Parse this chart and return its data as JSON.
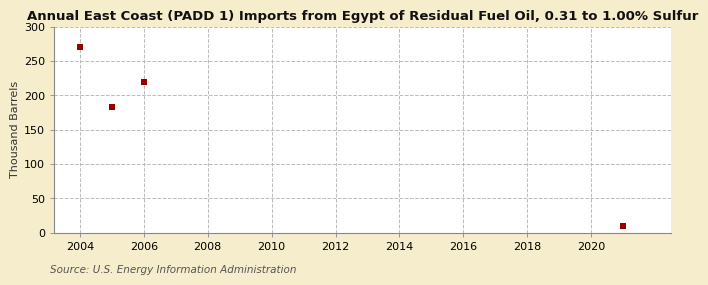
{
  "title": "Annual East Coast (PADD 1) Imports from Egypt of Residual Fuel Oil, 0.31 to 1.00% Sulfur",
  "ylabel": "Thousand Barrels",
  "source": "Source: U.S. Energy Information Administration",
  "fig_background_color": "#f5edcb",
  "plot_background_color": "#ffffff",
  "data_points": [
    {
      "year": 2004,
      "value": 271
    },
    {
      "year": 2005,
      "value": 183
    },
    {
      "year": 2006,
      "value": 220
    },
    {
      "year": 2021,
      "value": 10
    }
  ],
  "marker_color": "#990000",
  "marker_size": 4,
  "xlim": [
    2003.2,
    2022.5
  ],
  "ylim": [
    0,
    300
  ],
  "yticks": [
    0,
    50,
    100,
    150,
    200,
    250,
    300
  ],
  "xticks": [
    2004,
    2006,
    2008,
    2010,
    2012,
    2014,
    2016,
    2018,
    2020
  ],
  "grid_color": "#bbbbbb",
  "grid_linestyle": "--",
  "title_fontsize": 9.5,
  "ylabel_fontsize": 8,
  "tick_fontsize": 8,
  "source_fontsize": 7.5
}
